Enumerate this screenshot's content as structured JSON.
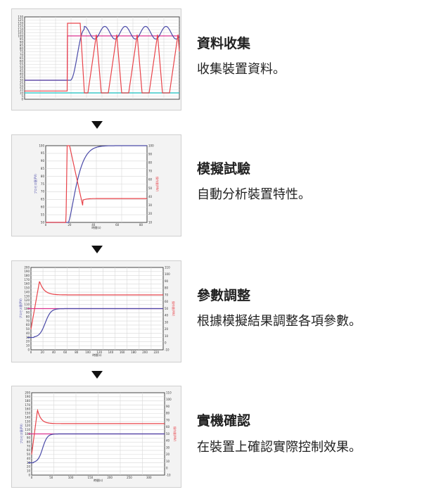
{
  "steps": [
    {
      "title": "資料收集",
      "desc": "收集裝置資料。"
    },
    {
      "title": "模擬試驗",
      "desc": "自動分析裝置特性。"
    },
    {
      "title": "參數調整",
      "desc": "根據模擬結果調整各項參數。"
    },
    {
      "title": "實機確認",
      "desc": "在裝置上確認實際控制效果。"
    }
  ],
  "arrow_icon": "triangle-down",
  "colors": {
    "pv": "#4a4aa8",
    "mv": "#e8434a",
    "sp": "#d9338f",
    "ref": "#3cc8c8",
    "grid": "#d8d8d8"
  },
  "charts": [
    {
      "type": "line",
      "ylim": [
        0,
        130
      ],
      "yticks_step": 5
    },
    {
      "type": "line",
      "ylim": [
        50,
        100
      ],
      "ylim_right": [
        10,
        100
      ],
      "xticks": [
        0,
        20,
        40,
        60,
        80
      ],
      "xlabel": "時間(s)",
      "ylabel": "プロセス値(PV)",
      "ylabel_right": "操作量(MV)"
    },
    {
      "type": "line",
      "ylim": [
        0,
        200
      ],
      "ylim_right": [
        -10,
        110
      ],
      "xticks": [
        0,
        20,
        40,
        60,
        80,
        100,
        120,
        140,
        160,
        180,
        200,
        220
      ],
      "xlabel": "時間(s)",
      "ylabel": "プロセス値(PV)",
      "ylabel_right": "操作量(MV)"
    },
    {
      "type": "line",
      "ylim": [
        0,
        200
      ],
      "ylim_right": [
        -10,
        110
      ],
      "xticks": [
        0,
        50,
        100,
        150,
        200,
        250,
        300
      ],
      "xlabel": "時間(s)",
      "ylabel": "プロセス値(PV)",
      "ylabel_right": "操作量(MV)"
    }
  ]
}
